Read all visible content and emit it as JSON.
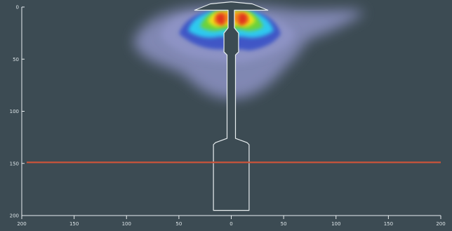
{
  "colors": {
    "background": "#3c4b53",
    "axis": "#e8eef0",
    "outline": "#e8eef0",
    "reference_line": "#c9533a",
    "heat_low": "#8d93c4",
    "heat_mid": "#3f56c6",
    "heat_cyan": "#2fc9f0",
    "heat_green": "#6bd23a",
    "heat_yellow": "#f2e51c",
    "heat_orange": "#f08a1e",
    "heat_red": "#e0311c"
  },
  "axes": {
    "x_ticks": [
      {
        "label": "200",
        "value": -200
      },
      {
        "label": "150",
        "value": -150
      },
      {
        "label": "100",
        "value": -100
      },
      {
        "label": "50",
        "value": -50
      },
      {
        "label": "0",
        "value": 0
      },
      {
        "label": "50",
        "value": 50
      },
      {
        "label": "100",
        "value": 100
      },
      {
        "label": "150",
        "value": 150
      },
      {
        "label": "200",
        "value": 200
      }
    ],
    "y_ticks": [
      {
        "label": "0",
        "value": 0
      },
      {
        "label": "50",
        "value": 50
      },
      {
        "label": "100",
        "value": 100
      },
      {
        "label": "150",
        "value": 150
      },
      {
        "label": "200",
        "value": 200
      }
    ],
    "x_range": [
      -200,
      200
    ],
    "y_range": [
      0,
      200
    ]
  },
  "reference_line_y": 149,
  "object_outline": [
    [
      -35,
      3
    ],
    [
      -20,
      -3
    ],
    [
      0,
      -5
    ],
    [
      20,
      -3
    ],
    [
      35,
      3
    ],
    [
      3,
      3
    ],
    [
      3,
      20
    ],
    [
      7,
      25
    ],
    [
      7,
      43
    ],
    [
      4,
      46
    ],
    [
      4,
      126
    ],
    [
      15,
      130
    ],
    [
      17,
      132
    ],
    [
      17,
      195
    ],
    [
      -17,
      195
    ],
    [
      -17,
      132
    ],
    [
      -15,
      130
    ],
    [
      -4,
      126
    ],
    [
      -4,
      46
    ],
    [
      -7,
      43
    ],
    [
      -7,
      25
    ],
    [
      -3,
      20
    ],
    [
      -3,
      3
    ]
  ]
}
